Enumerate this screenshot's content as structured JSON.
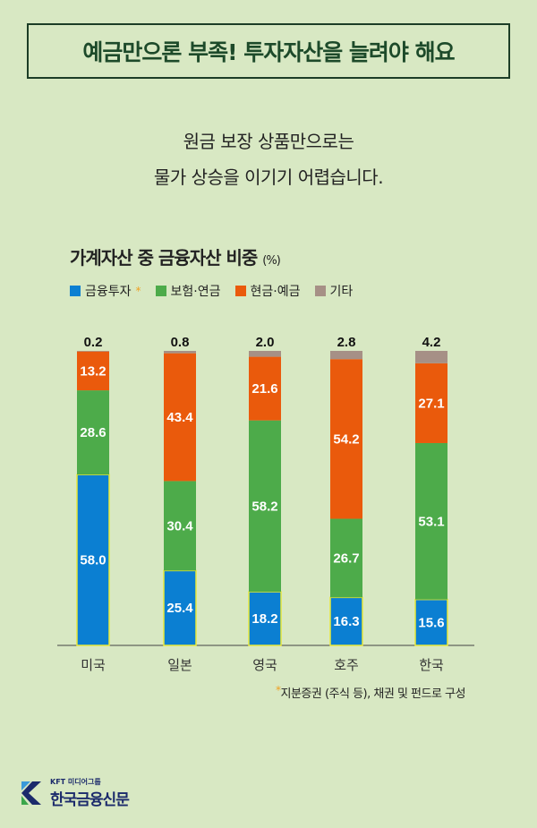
{
  "title": "예금만으론 부족! 투자자산을 늘려야 해요",
  "subtitle": [
    "원금 보장 상품만으로는",
    "물가 상승을 이기기 어렵습니다."
  ],
  "chart_data": {
    "type": "stacked-bar",
    "title": "가계자산 중 금융자산 비중",
    "unit": "(%)",
    "categories": [
      "미국",
      "일본",
      "영국",
      "호주",
      "한국"
    ],
    "series": [
      {
        "name": "금융투자",
        "color": "#0b7fd2",
        "values": [
          58.0,
          25.4,
          18.2,
          16.3,
          15.6
        ]
      },
      {
        "name": "보험·연금",
        "color": "#4dab4a",
        "values": [
          28.6,
          30.4,
          58.2,
          26.7,
          53.1
        ]
      },
      {
        "name": "현금·예금",
        "color": "#ea5a0c",
        "values": [
          13.2,
          43.4,
          21.6,
          54.2,
          27.1
        ]
      },
      {
        "name": "기타",
        "color": "#a69086",
        "values": [
          0.2,
          0.8,
          2.0,
          2.8,
          4.2
        ]
      }
    ],
    "ylim": [
      0,
      100
    ],
    "footnote_marker": "*",
    "footnote": "지분증권 (주식 등), 채권 및 펀드로 구성"
  },
  "logo": {
    "group": "KFT 미디어그룹",
    "name": "한국금융신문"
  }
}
